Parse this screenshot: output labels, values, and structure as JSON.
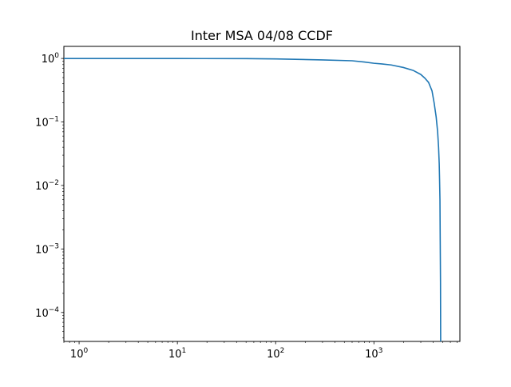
{
  "chart_data": {
    "type": "line",
    "title": "Inter MSA 04/08 CCDF",
    "xlabel": "",
    "ylabel": "",
    "xscale": "log",
    "yscale": "log",
    "xlim": [
      0.7,
      7500
    ],
    "ylim": [
      3.5e-05,
      1.55
    ],
    "grid": false,
    "legend": "none",
    "x_ticks": [
      {
        "value": 1,
        "base": "10",
        "exp": "0"
      },
      {
        "value": 10,
        "base": "10",
        "exp": "1"
      },
      {
        "value": 100,
        "base": "10",
        "exp": "2"
      },
      {
        "value": 1000,
        "base": "10",
        "exp": "3"
      }
    ],
    "y_ticks": [
      {
        "value": 1,
        "base": "10",
        "exp": "0"
      },
      {
        "value": 0.1,
        "base": "10",
        "exp": "−1"
      },
      {
        "value": 0.01,
        "base": "10",
        "exp": "−2"
      },
      {
        "value": 0.001,
        "base": "10",
        "exp": "−3"
      },
      {
        "value": 0.0001,
        "base": "10",
        "exp": "−4"
      }
    ],
    "series": [
      {
        "color": "#1f77b4",
        "x": [
          0.7,
          1,
          10,
          50,
          100,
          300,
          600,
          800,
          1000,
          1200,
          1500,
          2000,
          2500,
          3000,
          3300,
          3600,
          3900,
          4100,
          4300,
          4450,
          4550,
          4620,
          4660,
          4700,
          4720,
          4740,
          4760,
          4770,
          4775,
          4780
        ],
        "y": [
          0.999,
          0.999,
          0.998,
          0.993,
          0.985,
          0.95,
          0.92,
          0.88,
          0.84,
          0.82,
          0.79,
          0.72,
          0.65,
          0.56,
          0.49,
          0.42,
          0.31,
          0.2,
          0.12,
          0.07,
          0.04,
          0.022,
          0.012,
          0.006,
          0.002,
          0.0008,
          0.0003,
          0.0001,
          5e-05,
          3.5e-05
        ]
      }
    ]
  }
}
